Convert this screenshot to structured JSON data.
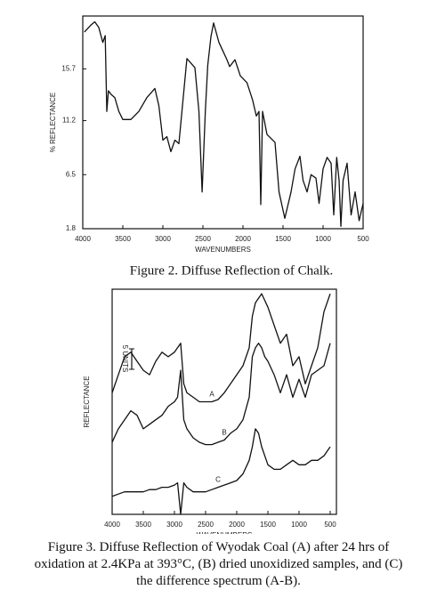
{
  "chart_data": [
    {
      "type": "line",
      "caption": "Figure 2.  Diffuse Reflection of Chalk.",
      "xlabel": "WAVENUMBERS",
      "ylabel": "% REFLECTANCE",
      "x": [
        3980,
        3900,
        3850,
        3800,
        3750,
        3720,
        3700,
        3680,
        3650,
        3600,
        3550,
        3500,
        3400,
        3300,
        3200,
        3100,
        3050,
        3000,
        2950,
        2900,
        2850,
        2800,
        2700,
        2600,
        2550,
        2510,
        2470,
        2440,
        2400,
        2367,
        2300,
        2200,
        2167,
        2100,
        2033,
        1950,
        1880,
        1833,
        1800,
        1778,
        1756,
        1700,
        1600,
        1550,
        1478,
        1400,
        1350,
        1289,
        1250,
        1200,
        1150,
        1089,
        1050,
        1000,
        950,
        900,
        867,
        830,
        800,
        778,
        750,
        700,
        650,
        600,
        550,
        500
      ],
      "values": [
        18.9,
        19.5,
        19.8,
        19.3,
        18.0,
        18.6,
        12.0,
        13.8,
        13.5,
        13.2,
        12.0,
        11.3,
        11.3,
        12.0,
        13.2,
        14.0,
        12.5,
        9.5,
        9.8,
        8.5,
        9.5,
        9.2,
        16.6,
        15.8,
        12.0,
        5.0,
        12.0,
        16.0,
        18.5,
        19.7,
        18.0,
        16.5,
        15.9,
        16.5,
        15.1,
        14.5,
        13.0,
        11.6,
        12.0,
        3.9,
        12.0,
        10.0,
        9.3,
        5.0,
        2.7,
        5.0,
        7.0,
        8.1,
        6.0,
        5.0,
        6.5,
        6.2,
        4.0,
        7.0,
        8.0,
        7.5,
        3.0,
        8.0,
        6.0,
        2.0,
        6.0,
        7.5,
        3.0,
        5.0,
        2.5,
        4.0
      ],
      "color": "#111111",
      "xlim": [
        4000,
        500
      ],
      "xticks": [
        4000,
        3500,
        3000,
        2500,
        2000,
        1500,
        1000,
        500
      ],
      "ylim": [
        1.8,
        20.3
      ],
      "yticks": [
        1.8,
        6.5,
        11.2,
        15.7
      ],
      "grid": false
    },
    {
      "type": "line",
      "caption": "Figure 3.  Diffuse Reflection of Wyodak Coal (A) after 24 hrs of oxidation at 2.4KPa at 393°C, (B) dried unoxidized samples, and (C) the difference spectrum (A-B).",
      "xlabel": "WAVENUMBERS",
      "ylabel": "REFLECTANCE",
      "scale_label": "5 UNITS",
      "x": [
        4000,
        3900,
        3800,
        3700,
        3600,
        3500,
        3400,
        3300,
        3200,
        3100,
        3000,
        2950,
        2900,
        2850,
        2800,
        2700,
        2600,
        2500,
        2400,
        2300,
        2200,
        2100,
        2000,
        1900,
        1800,
        1750,
        1700,
        1650,
        1600,
        1550,
        1500,
        1400,
        1300,
        1200,
        1100,
        1000,
        900,
        800,
        700,
        600,
        500
      ],
      "series": [
        {
          "name": "A",
          "color": "#111111",
          "values": [
            54,
            62,
            70,
            72,
            68,
            64,
            62,
            68,
            72,
            70,
            72,
            74,
            76,
            58,
            54,
            52,
            50,
            50,
            50,
            51,
            54,
            58,
            62,
            66,
            74,
            88,
            94,
            96,
            98,
            95,
            92,
            84,
            76,
            80,
            66,
            70,
            58,
            66,
            74,
            90,
            98
          ]
        },
        {
          "name": "B",
          "color": "#111111",
          "values": [
            32,
            38,
            42,
            46,
            44,
            38,
            40,
            42,
            44,
            48,
            50,
            52,
            64,
            42,
            38,
            34,
            32,
            31,
            31,
            32,
            33,
            36,
            38,
            42,
            52,
            70,
            74,
            76,
            74,
            70,
            68,
            62,
            54,
            62,
            52,
            60,
            52,
            62,
            64,
            66,
            76
          ]
        },
        {
          "name": "C",
          "color": "#111111",
          "values": [
            8,
            9,
            10,
            10,
            10,
            10,
            11,
            11,
            12,
            12,
            13,
            14,
            0,
            14,
            12,
            10,
            10,
            10,
            11,
            12,
            13,
            14,
            15,
            18,
            24,
            30,
            38,
            36,
            30,
            26,
            22,
            20,
            20,
            22,
            24,
            22,
            22,
            24,
            24,
            26,
            30
          ]
        }
      ],
      "xlim": [
        4000,
        400
      ],
      "xticks": [
        4000,
        3500,
        3000,
        2500,
        2000,
        1500,
        1000,
        500
      ],
      "ylim": [
        0,
        100
      ],
      "grid": false
    }
  ]
}
